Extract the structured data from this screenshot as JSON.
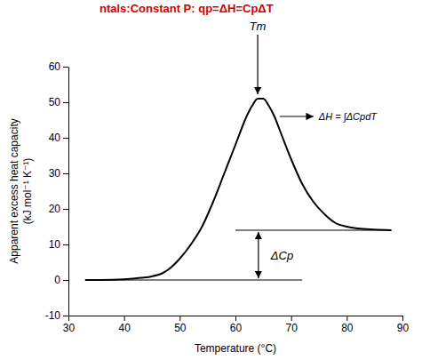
{
  "chart_data": {
    "type": "line",
    "title": "ntals:Constant P: qp=ΔH=CpΔT",
    "x_label": "Temperature (°C)",
    "y_label": [
      "Apparent excess heat capacity",
      "(kJ mol⁻¹ K⁻¹)"
    ],
    "x": [
      33,
      36,
      40,
      43,
      45,
      47,
      48,
      50,
      52,
      54,
      56,
      58,
      60,
      62,
      63,
      64,
      65,
      66,
      67,
      68,
      70,
      72,
      74,
      76,
      78,
      80,
      82,
      85,
      88
    ],
    "values": [
      0,
      0,
      0.2,
      0.6,
      1,
      2,
      3,
      6,
      10,
      15,
      22,
      30,
      38,
      46,
      49,
      51,
      51,
      49,
      46,
      42,
      34,
      27,
      22,
      18.5,
      16,
      15,
      14.5,
      14.2,
      14
    ],
    "color": "#000000",
    "baselines": [
      {
        "x": [
          35,
          72
        ],
        "values": [
          0,
          0
        ]
      },
      {
        "x": [
          60,
          88
        ],
        "values": [
          14,
          14
        ]
      }
    ],
    "annotations": [
      "Tm",
      "ΔH = ∫ΔCpdT",
      "ΔCp"
    ],
    "xlim": [
      30,
      90
    ],
    "ylim": [
      -10,
      60
    ],
    "xticks": [
      30,
      40,
      50,
      60,
      70,
      80,
      90
    ],
    "yticks": [
      -10,
      0,
      10,
      20,
      30,
      40,
      50,
      60
    ],
    "grid": false
  }
}
